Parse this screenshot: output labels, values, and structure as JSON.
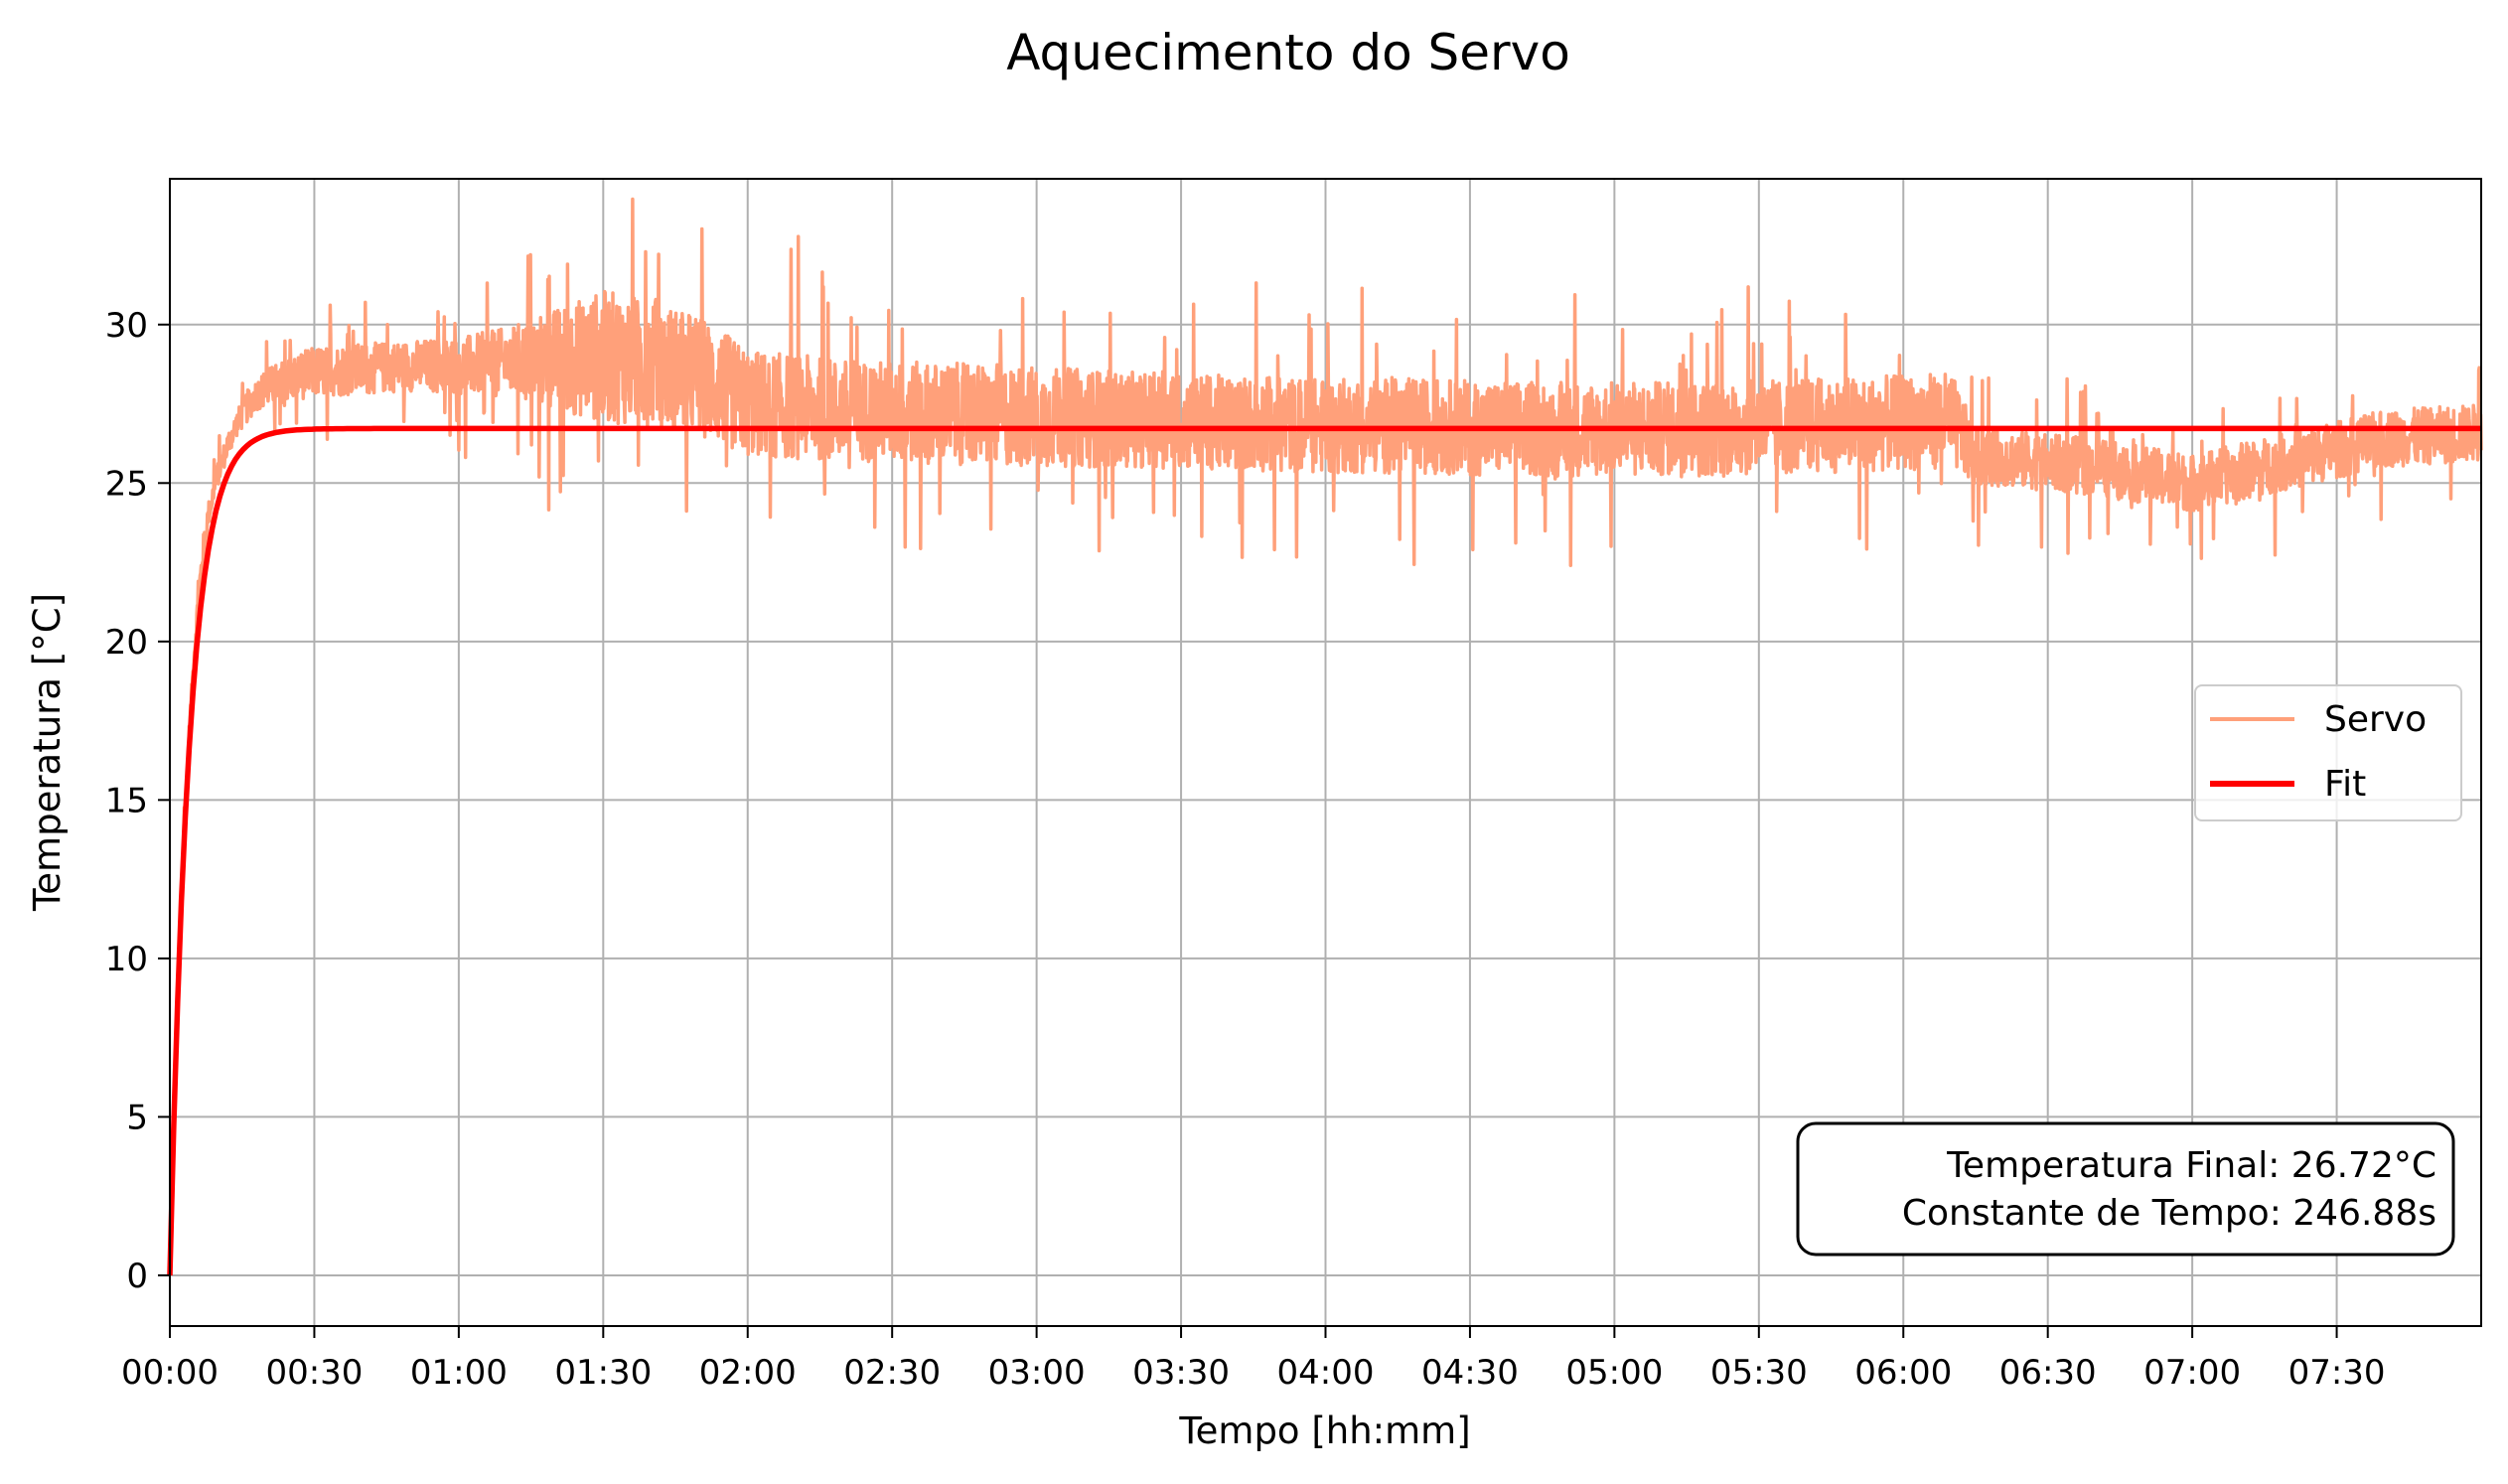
{
  "chart_data": {
    "type": "line",
    "title": "Aquecimento do Servo",
    "xlabel": "Tempo [hh:mm]",
    "ylabel": "Temperatura [°C]",
    "x_unit": "minutes",
    "xlim": [
      0,
      480
    ],
    "ylim": [
      -1.6,
      34.6
    ],
    "x_ticks": [
      {
        "value": 0,
        "label": "00:00"
      },
      {
        "value": 30,
        "label": "00:30"
      },
      {
        "value": 60,
        "label": "01:00"
      },
      {
        "value": 90,
        "label": "01:30"
      },
      {
        "value": 120,
        "label": "02:00"
      },
      {
        "value": 150,
        "label": "02:30"
      },
      {
        "value": 180,
        "label": "03:00"
      },
      {
        "value": 210,
        "label": "03:30"
      },
      {
        "value": 240,
        "label": "04:00"
      },
      {
        "value": 270,
        "label": "04:30"
      },
      {
        "value": 300,
        "label": "05:00"
      },
      {
        "value": 330,
        "label": "05:30"
      },
      {
        "value": 360,
        "label": "06:00"
      },
      {
        "value": 390,
        "label": "06:30"
      },
      {
        "value": 420,
        "label": "07:00"
      },
      {
        "value": 450,
        "label": "07:30"
      }
    ],
    "y_ticks": [
      0,
      5,
      10,
      15,
      20,
      25,
      30
    ],
    "grid": true,
    "legend_position": "center-right",
    "series": [
      {
        "name": "Servo",
        "color": "#ffa07a",
        "style": "noisy measurement",
        "x": [
          0,
          1,
          2,
          3,
          4,
          5,
          6,
          7,
          8,
          10,
          12,
          14,
          16,
          18,
          20,
          25,
          30,
          40,
          50,
          60,
          70,
          80,
          90,
          100,
          110,
          120,
          140,
          160,
          180,
          200,
          220,
          240,
          260,
          280,
          300,
          320,
          340,
          360,
          370,
          375,
          380,
          400,
          420,
          440,
          460,
          480
        ],
        "y": [
          0.5,
          6.0,
          10.5,
          14.0,
          17.0,
          19.5,
          21.5,
          23.0,
          24.0,
          25.3,
          26.2,
          26.9,
          27.4,
          27.8,
          28.0,
          28.3,
          28.5,
          28.6,
          28.7,
          28.7,
          28.8,
          28.9,
          29.0,
          28.8,
          28.4,
          27.5,
          27.3,
          27.2,
          27.1,
          27.0,
          26.9,
          26.8,
          26.8,
          26.7,
          26.7,
          26.7,
          26.8,
          26.9,
          27.0,
          25.8,
          25.8,
          25.5,
          25.0,
          25.7,
          26.4,
          26.6
        ],
        "noise_amplitude": [
          0.3,
          0.4,
          0.4,
          0.4,
          0.4,
          0.4,
          0.4,
          0.4,
          0.4,
          0.4,
          0.4,
          0.4,
          0.5,
          0.5,
          0.6,
          0.7,
          0.8,
          0.8,
          0.8,
          0.9,
          1.1,
          1.6,
          2.1,
          2.0,
          1.9,
          1.7,
          1.6,
          1.6,
          1.6,
          1.5,
          1.5,
          1.5,
          1.5,
          1.5,
          1.5,
          1.5,
          1.5,
          1.5,
          1.5,
          0.9,
          0.9,
          0.9,
          0.9,
          0.9,
          0.9,
          0.9
        ]
      },
      {
        "name": "Fit",
        "color": "#ff0000",
        "model": "T(t) = T_final * (1 - exp(-t / tau))",
        "T_final": 26.72,
        "tau_seconds": 246.88
      }
    ],
    "annotation": {
      "line1": "Temperatura Final: 26.72°C",
      "line2": "Constante de Tempo: 246.88s"
    }
  }
}
